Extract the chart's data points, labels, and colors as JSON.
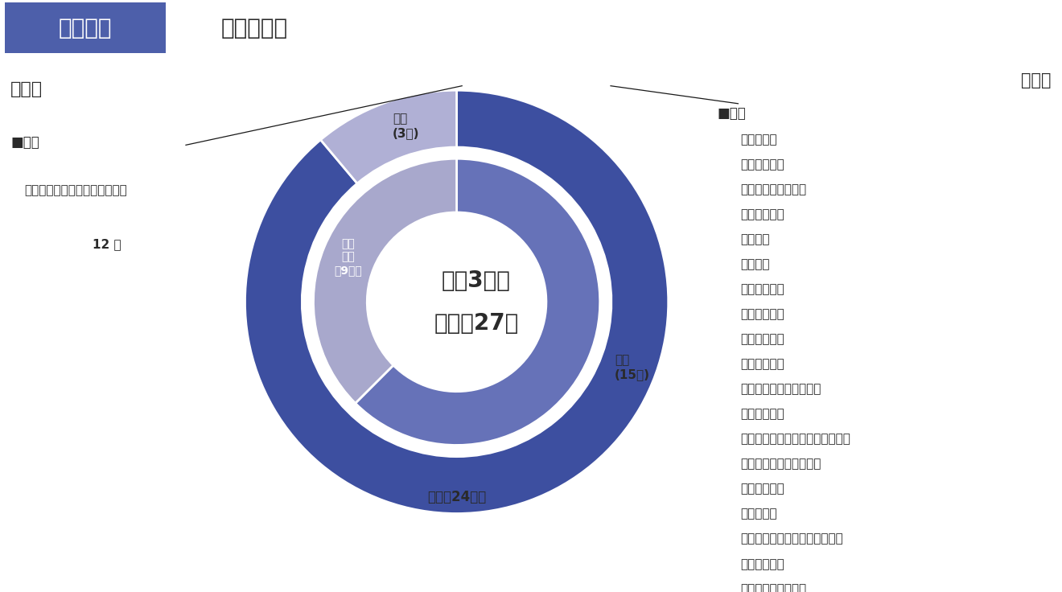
{
  "title_badge": "進路情報",
  "title_sub": "准看護学院",
  "badge_bg": "#4d5faa",
  "badge_text_color": "#ffffff",
  "subtitle_bg": "#c0c0c0",
  "subtitle_text_color": "#2a2a2a",
  "center_text_line1": "令和3年度",
  "center_text_line2": "卒業生27名",
  "outer_values": [
    24,
    3
  ],
  "outer_colors": [
    "#3d4fa0",
    "#b0b0d5"
  ],
  "outer_label_shokushu": "就職（24名）",
  "outer_label_shingaku": "進学\n(3名)",
  "inner_values": [
    15,
    9
  ],
  "inner_colors": [
    "#6672b8",
    "#a8a8cc"
  ],
  "inner_label_shokushu": "就職\n(15名)",
  "inner_label_shokushingaku": "就職\n進学\n（9名）",
  "gakusaki_title": "進学先",
  "gakusaki_badge": "■県内",
  "gakusaki_school": "盛岡市医師会附属高等看護学院",
  "gakusaki_count": "12 名",
  "shokusaki_title": "就職先",
  "shokusaki_badge": "■県内",
  "shokusaki_list": [
    "川久保病院",
    "鶯宿温泉病院",
    "未来の風せいわ病院",
    "滝沢中央病院",
    "荻野病院",
    "高松病院",
    "東八幡平病院",
    "盛岡友愛病院",
    "ひめかみ病院",
    "近藤眼科医院",
    "おいかわ内科クリニック",
    "藤島内科医院",
    "駅前おおば脳神経内科クリニック",
    "鈴木肛門外科・守口内科",
    "谷藤眼科医院",
    "くるみの家",
    "特別養護老人ホームれいたく園",
    "めぐみ幼稚園",
    "社会福祉法人慈孝会"
  ],
  "bg_color": "#ffffff",
  "line_color": "#1a1a1a",
  "text_color": "#2a2a2a"
}
